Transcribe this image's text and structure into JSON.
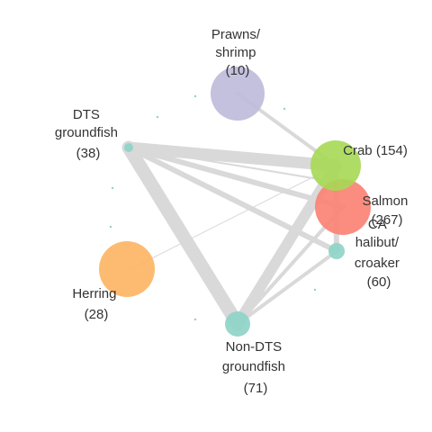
{
  "nodes": [
    {
      "id": "prawns",
      "label_lines": [
        "Prawns/",
        "shrimp",
        "(10)"
      ],
      "color": "#bebada"
    },
    {
      "id": "dts",
      "label_lines": [
        "DTS",
        "groundfish",
        "(38)"
      ],
      "color": "#8dd3c7"
    },
    {
      "id": "crab",
      "label_lines": [
        "Crab (154)"
      ],
      "color": "#a6d854"
    },
    {
      "id": "salmon",
      "label_lines": [
        "Salmon",
        "(267)"
      ],
      "color": "#fb8072"
    },
    {
      "id": "ca_halibut",
      "label_lines": [
        "CA",
        "halibut/",
        "croaker",
        "(60)"
      ],
      "color": "#8dd3c7"
    },
    {
      "id": "herring",
      "label_lines": [
        "Herring",
        "(28)"
      ],
      "color": "#fdb462"
    },
    {
      "id": "non_dts",
      "label_lines": [
        "Non-DTS",
        "groundfish",
        "(71)"
      ],
      "color": "#8dd3c7"
    }
  ],
  "edge_color": "#d9d9d9"
}
